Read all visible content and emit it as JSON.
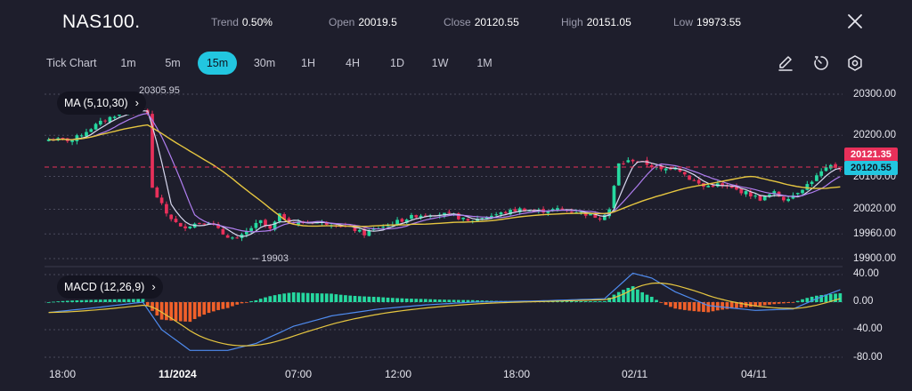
{
  "header": {
    "symbol": "NAS100.",
    "stats": [
      {
        "label": "Trend",
        "value": "0.50%"
      },
      {
        "label": "Open",
        "value": "20019.5"
      },
      {
        "label": "Close",
        "value": "20120.55"
      },
      {
        "label": "High",
        "value": "20151.05"
      },
      {
        "label": "Low",
        "value": "19973.55"
      }
    ]
  },
  "toolbar": {
    "tick_chart": "Tick Chart",
    "timeframes": [
      "1m",
      "5m",
      "15m",
      "30m",
      "1H",
      "4H",
      "1D",
      "1W",
      "1M"
    ],
    "active_timeframe": "15m",
    "icons": [
      "draw-icon",
      "timer-icon",
      "settings-icon"
    ]
  },
  "indicators": {
    "ma_label": "MA (5,10,30)",
    "macd_label": "MACD (12,26,9)"
  },
  "price_axis": {
    "ticks": [
      "20300.00",
      "20200.00",
      "20100.00",
      "20020.00",
      "19960.00",
      "19900.00"
    ],
    "last_price_red": "20121.35",
    "last_price_cyan": "20120.55",
    "high_marker": "20305.95",
    "low_marker": "19903"
  },
  "macd_axis": {
    "ticks": [
      "40.00",
      "0.00",
      "-40.00",
      "-80.00"
    ]
  },
  "time_axis": {
    "labels": [
      "18:00",
      "11/2024",
      "07:00",
      "12:00",
      "18:00",
      "02/11",
      "04/11"
    ]
  },
  "colors": {
    "background": "#1e1e2c",
    "up": "#26d9a0",
    "down": "#e8305a",
    "accent": "#22c6e0",
    "ma5": "#d9d9f0",
    "ma10": "#b07ef0",
    "ma30": "#e6c640",
    "macd_line": "#4f8cf0",
    "signal_line": "#e6c640",
    "hist_up": "#26d9a0",
    "hist_down": "#f0602a"
  },
  "chart_data": {
    "type": "candlestick",
    "price_ylim": [
      19880,
      20320
    ],
    "macd_ylim": [
      -90,
      45
    ],
    "candle_close_anchors": [
      [
        0,
        20190
      ],
      [
        5,
        20188
      ],
      [
        10,
        20225
      ],
      [
        15,
        20255
      ],
      [
        20,
        20262
      ],
      [
        21,
        20255
      ],
      [
        22,
        20070
      ],
      [
        25,
        20010
      ],
      [
        28,
        19975
      ],
      [
        31,
        19985
      ],
      [
        34,
        19990
      ],
      [
        37,
        19960
      ],
      [
        40,
        19945
      ],
      [
        43,
        19975
      ],
      [
        45,
        19990
      ],
      [
        47,
        19970
      ],
      [
        49,
        20005
      ],
      [
        52,
        19985
      ],
      [
        56,
        19990
      ],
      [
        60,
        19985
      ],
      [
        64,
        19975
      ],
      [
        67,
        19960
      ],
      [
        70,
        19975
      ],
      [
        74,
        19990
      ],
      [
        78,
        20005
      ],
      [
        82,
        20010
      ],
      [
        86,
        20005
      ],
      [
        89,
        19990
      ],
      [
        92,
        20000
      ],
      [
        96,
        20010
      ],
      [
        100,
        20020
      ],
      [
        104,
        20015
      ],
      [
        108,
        20020
      ],
      [
        112,
        20015
      ],
      [
        115,
        20005
      ],
      [
        117,
        20000
      ],
      [
        119,
        20020
      ],
      [
        121,
        20130
      ],
      [
        124,
        20140
      ],
      [
        127,
        20130
      ],
      [
        130,
        20115
      ],
      [
        133,
        20125
      ],
      [
        136,
        20095
      ],
      [
        139,
        20075
      ],
      [
        142,
        20080
      ],
      [
        145,
        20070
      ],
      [
        148,
        20060
      ],
      [
        151,
        20045
      ],
      [
        154,
        20060
      ],
      [
        156,
        20045
      ],
      [
        158,
        20055
      ],
      [
        161,
        20080
      ],
      [
        164,
        20110
      ],
      [
        166,
        20125
      ],
      [
        168,
        20120
      ]
    ],
    "macd_anchors": [
      [
        0,
        -15
      ],
      [
        10,
        -8
      ],
      [
        20,
        0
      ],
      [
        24,
        -40
      ],
      [
        30,
        -70
      ],
      [
        38,
        -70
      ],
      [
        44,
        -60
      ],
      [
        52,
        -35
      ],
      [
        60,
        -20
      ],
      [
        70,
        -10
      ],
      [
        80,
        -4
      ],
      [
        90,
        0
      ],
      [
        105,
        2
      ],
      [
        118,
        5
      ],
      [
        124,
        42
      ],
      [
        128,
        35
      ],
      [
        133,
        15
      ],
      [
        140,
        -5
      ],
      [
        150,
        -12
      ],
      [
        158,
        -10
      ],
      [
        163,
        5
      ],
      [
        168,
        18
      ]
    ]
  }
}
